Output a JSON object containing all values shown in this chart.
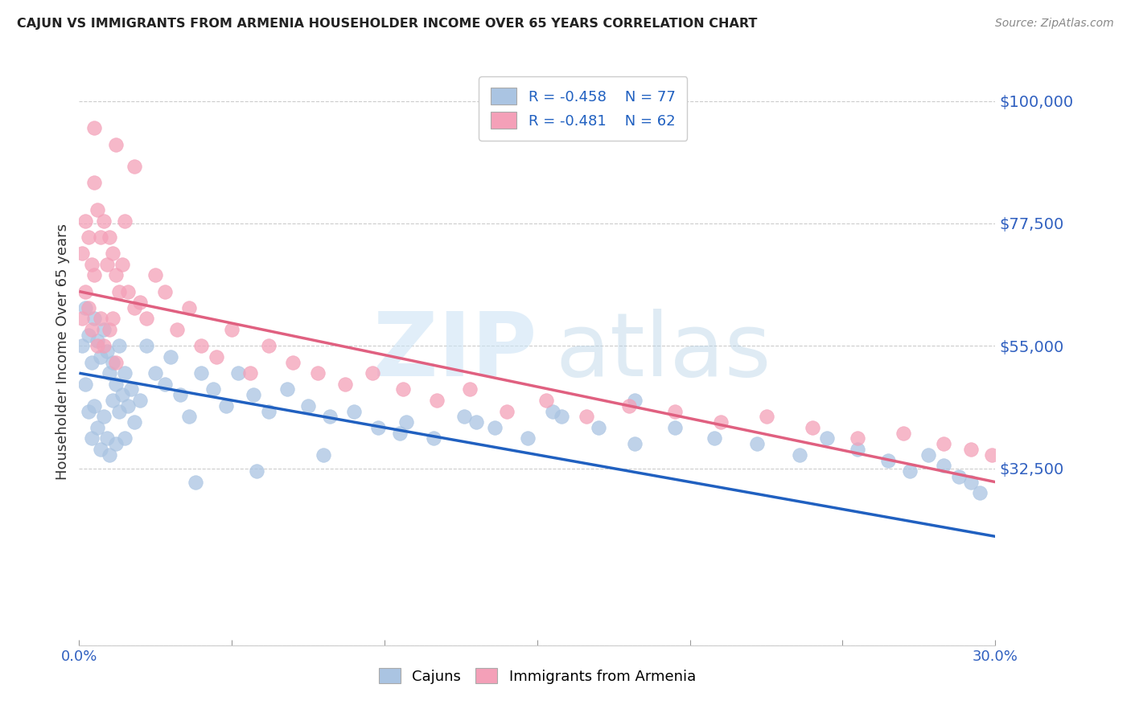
{
  "title": "CAJUN VS IMMIGRANTS FROM ARMENIA HOUSEHOLDER INCOME OVER 65 YEARS CORRELATION CHART",
  "source": "Source: ZipAtlas.com",
  "ylabel": "Householder Income Over 65 years",
  "y_ticks": [
    0,
    32500,
    55000,
    77500,
    100000
  ],
  "y_tick_labels": [
    "",
    "$32,500",
    "$55,000",
    "$77,500",
    "$100,000"
  ],
  "x_range": [
    0.0,
    0.3
  ],
  "y_range": [
    0,
    108000
  ],
  "cajun_R": -0.458,
  "cajun_N": 77,
  "armenia_R": -0.481,
  "armenia_N": 62,
  "cajun_color": "#aac4e2",
  "armenia_color": "#f4a0b8",
  "cajun_line_color": "#2060c0",
  "armenia_line_color": "#e06080",
  "cajun_scatter_x": [
    0.001,
    0.002,
    0.002,
    0.003,
    0.003,
    0.004,
    0.004,
    0.005,
    0.005,
    0.006,
    0.006,
    0.007,
    0.007,
    0.008,
    0.008,
    0.009,
    0.009,
    0.01,
    0.01,
    0.011,
    0.011,
    0.012,
    0.012,
    0.013,
    0.013,
    0.014,
    0.015,
    0.015,
    0.016,
    0.017,
    0.018,
    0.02,
    0.022,
    0.025,
    0.028,
    0.03,
    0.033,
    0.036,
    0.04,
    0.044,
    0.048,
    0.052,
    0.057,
    0.062,
    0.068,
    0.075,
    0.082,
    0.09,
    0.098,
    0.107,
    0.116,
    0.126,
    0.136,
    0.147,
    0.158,
    0.17,
    0.182,
    0.195,
    0.208,
    0.222,
    0.236,
    0.245,
    0.255,
    0.265,
    0.272,
    0.278,
    0.283,
    0.288,
    0.292,
    0.295,
    0.182,
    0.155,
    0.13,
    0.105,
    0.08,
    0.058,
    0.038
  ],
  "cajun_scatter_y": [
    55000,
    62000,
    48000,
    57000,
    43000,
    52000,
    38000,
    60000,
    44000,
    56000,
    40000,
    53000,
    36000,
    58000,
    42000,
    54000,
    38000,
    50000,
    35000,
    52000,
    45000,
    48000,
    37000,
    55000,
    43000,
    46000,
    50000,
    38000,
    44000,
    47000,
    41000,
    45000,
    55000,
    50000,
    48000,
    53000,
    46000,
    42000,
    50000,
    47000,
    44000,
    50000,
    46000,
    43000,
    47000,
    44000,
    42000,
    43000,
    40000,
    41000,
    38000,
    42000,
    40000,
    38000,
    42000,
    40000,
    37000,
    40000,
    38000,
    37000,
    35000,
    38000,
    36000,
    34000,
    32000,
    35000,
    33000,
    31000,
    30000,
    28000,
    45000,
    43000,
    41000,
    39000,
    35000,
    32000,
    30000
  ],
  "armenia_scatter_x": [
    0.001,
    0.001,
    0.002,
    0.002,
    0.003,
    0.003,
    0.004,
    0.004,
    0.005,
    0.005,
    0.006,
    0.006,
    0.007,
    0.007,
    0.008,
    0.008,
    0.009,
    0.01,
    0.01,
    0.011,
    0.011,
    0.012,
    0.012,
    0.013,
    0.014,
    0.015,
    0.016,
    0.018,
    0.02,
    0.022,
    0.025,
    0.028,
    0.032,
    0.036,
    0.04,
    0.045,
    0.05,
    0.056,
    0.062,
    0.07,
    0.078,
    0.087,
    0.096,
    0.106,
    0.117,
    0.128,
    0.14,
    0.153,
    0.166,
    0.18,
    0.195,
    0.21,
    0.225,
    0.24,
    0.255,
    0.27,
    0.283,
    0.292,
    0.299,
    0.005,
    0.012,
    0.018
  ],
  "armenia_scatter_y": [
    72000,
    60000,
    78000,
    65000,
    75000,
    62000,
    70000,
    58000,
    85000,
    68000,
    80000,
    55000,
    75000,
    60000,
    78000,
    55000,
    70000,
    75000,
    58000,
    72000,
    60000,
    68000,
    52000,
    65000,
    70000,
    78000,
    65000,
    62000,
    63000,
    60000,
    68000,
    65000,
    58000,
    62000,
    55000,
    53000,
    58000,
    50000,
    55000,
    52000,
    50000,
    48000,
    50000,
    47000,
    45000,
    47000,
    43000,
    45000,
    42000,
    44000,
    43000,
    41000,
    42000,
    40000,
    38000,
    39000,
    37000,
    36000,
    35000,
    95000,
    92000,
    88000
  ]
}
